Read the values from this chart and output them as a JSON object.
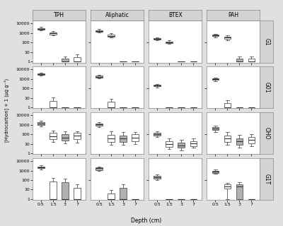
{
  "col_labels": [
    "TPH",
    "Aliphatic",
    "BTEX",
    "PAH"
  ],
  "row_strip_labels": [
    "G1",
    "G01",
    "OHO",
    "G1T"
  ],
  "depth_labels": [
    "0.5",
    "1.5",
    "3",
    "7"
  ],
  "xlabel": "Depth (cm)",
  "ylabel": "[Hydrocarbon] + 1 (μg g⁻¹)",
  "fig_bg": "#e0e0e0",
  "panel_bg": "#ffffff",
  "strip_bg": "#d3d3d3",
  "box_colors": [
    "#b0b0b0",
    "#ffffff",
    "#b0b0b0",
    "#ffffff"
  ],
  "ylim": [
    0.8,
    20000
  ],
  "data": {
    "G1": {
      "TPH": [
        [
          2000,
          2200,
          2700,
          3200,
          4500
        ],
        [
          600,
          750,
          950,
          1150,
          1600
        ],
        [
          1,
          1,
          1,
          2,
          20
        ],
        [
          1,
          1,
          1,
          3,
          8
        ]
      ],
      "Aliphatic": [
        [
          1100,
          1300,
          1700,
          2000,
          2800
        ],
        [
          350,
          430,
          530,
          700,
          950
        ],
        [
          1,
          1,
          1,
          1,
          1
        ],
        [
          1,
          1,
          1,
          1,
          1
        ]
      ],
      "BTEX": [
        [
          180,
          230,
          270,
          310,
          370
        ],
        [
          70,
          90,
          110,
          135,
          165
        ],
        [
          1,
          1,
          1,
          1,
          1
        ],
        [
          1,
          1,
          1,
          1,
          1
        ]
      ],
      "PAH": [
        [
          380,
          470,
          580,
          720,
          900
        ],
        [
          180,
          260,
          340,
          430,
          560
        ],
        [
          1,
          1,
          1,
          2,
          20
        ],
        [
          1,
          1,
          1,
          2,
          9
        ]
      ]
    },
    "G01": {
      "TPH": [
        [
          2200,
          2800,
          3300,
          3800,
          4600
        ],
        [
          1,
          1,
          1,
          5,
          80
        ],
        [
          1,
          1,
          1,
          1,
          1
        ],
        [
          1,
          1,
          1,
          1,
          1
        ]
      ],
      "Aliphatic": [
        [
          1100,
          1400,
          1700,
          2100,
          2700
        ],
        [
          1,
          1,
          1,
          4,
          50
        ],
        [
          1,
          1,
          1,
          1,
          1
        ],
        [
          1,
          1,
          1,
          1,
          1
        ]
      ],
      "BTEX": [
        [
          130,
          165,
          200,
          240,
          310
        ],
        [
          1,
          1,
          1,
          1,
          1
        ],
        [
          1,
          1,
          1,
          1,
          1
        ],
        [
          1,
          1,
          1,
          1,
          1
        ]
      ],
      "PAH": [
        [
          550,
          750,
          950,
          1150,
          1400
        ],
        [
          1,
          1,
          1,
          3,
          30
        ],
        [
          1,
          1,
          1,
          1,
          1
        ],
        [
          1,
          1,
          1,
          1,
          1
        ]
      ]
    },
    "OHO": {
      "TPH": [
        [
          700,
          1000,
          1400,
          1900,
          2700
        ],
        [
          15,
          30,
          65,
          140,
          260
        ],
        [
          12,
          22,
          45,
          95,
          190
        ],
        [
          14,
          32,
          70,
          140,
          210
        ]
      ],
      "Aliphatic": [
        [
          600,
          800,
          1100,
          1450,
          1900
        ],
        [
          8,
          15,
          35,
          90,
          190
        ],
        [
          8,
          15,
          35,
          75,
          160
        ],
        [
          10,
          20,
          45,
          95,
          170
        ]
      ],
      "BTEX": [
        [
          50,
          70,
          100,
          140,
          210
        ],
        [
          3,
          5,
          9,
          18,
          45
        ],
        [
          2,
          4,
          7,
          13,
          32
        ],
        [
          4,
          6,
          11,
          18,
          38
        ]
      ],
      "PAH": [
        [
          180,
          280,
          420,
          580,
          820
        ],
        [
          8,
          15,
          35,
          75,
          160
        ],
        [
          4,
          8,
          18,
          38,
          85
        ],
        [
          6,
          12,
          28,
          55,
          105
        ]
      ]
    },
    "G1T": {
      "TPH": [
        [
          1300,
          1800,
          2300,
          2800,
          3600
        ],
        [
          1,
          1,
          1,
          70,
          160
        ],
        [
          1,
          1,
          1,
          60,
          140
        ],
        [
          1,
          1,
          1,
          15,
          45
        ]
      ],
      "Aliphatic": [
        [
          900,
          1200,
          1700,
          2100,
          2700
        ],
        [
          1,
          1,
          1,
          4,
          85
        ],
        [
          1,
          1,
          1,
          15,
          85
        ],
        [
          1,
          1,
          1,
          1,
          1
        ]
      ],
      "BTEX": [
        [
          100,
          145,
          190,
          265,
          370
        ],
        [
          1,
          1,
          1,
          1,
          1
        ],
        [
          1,
          1,
          1,
          1,
          1
        ],
        [
          1,
          1,
          1,
          1,
          1
        ]
      ],
      "PAH": [
        [
          450,
          600,
          780,
          980,
          1250
        ],
        [
          1,
          12,
          22,
          38,
          55
        ],
        [
          1,
          1,
          22,
          38,
          65
        ],
        [
          1,
          1,
          1,
          1,
          1
        ]
      ]
    }
  }
}
